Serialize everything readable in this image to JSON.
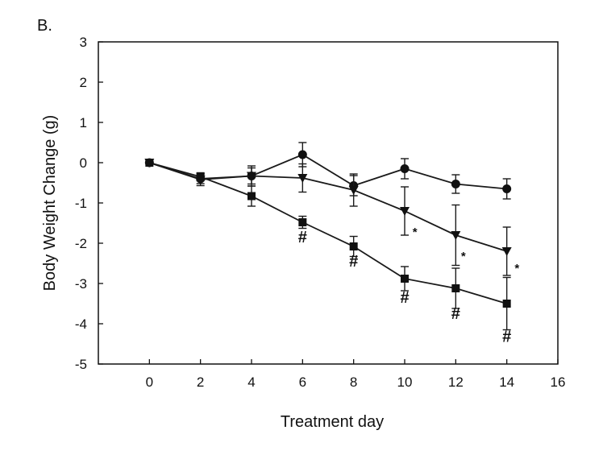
{
  "chart_data": {
    "type": "line",
    "panel_label": "B.",
    "title": "",
    "xlabel": "Treatment day",
    "ylabel": "Body Weight Change (g)",
    "xlim": [
      -2,
      16
    ],
    "ylim": [
      -5,
      3
    ],
    "xticks": [
      0,
      2,
      4,
      6,
      8,
      10,
      12,
      14,
      16
    ],
    "yticks": [
      -5,
      -4,
      -3,
      -2,
      -1,
      0,
      1,
      2,
      3
    ],
    "series": [
      {
        "name": "circle",
        "marker": "circle",
        "x": [
          0,
          2,
          4,
          6,
          8,
          10,
          12,
          14
        ],
        "y": [
          0,
          -0.4,
          -0.33,
          0.2,
          -0.57,
          -0.15,
          -0.53,
          -0.65
        ],
        "err": [
          0.05,
          0.12,
          0.2,
          0.3,
          0.25,
          0.25,
          0.23,
          0.25
        ]
      },
      {
        "name": "triangle",
        "marker": "triangle-down",
        "x": [
          0,
          2,
          4,
          6,
          8,
          10,
          12,
          14
        ],
        "y": [
          0,
          -0.42,
          -0.33,
          -0.38,
          -0.68,
          -1.2,
          -1.8,
          -2.2
        ],
        "err": [
          0.05,
          0.15,
          0.25,
          0.35,
          0.4,
          0.6,
          0.75,
          0.6
        ]
      },
      {
        "name": "square",
        "marker": "square",
        "x": [
          0,
          2,
          4,
          6,
          8,
          10,
          12,
          14
        ],
        "y": [
          0,
          -0.35,
          -0.83,
          -1.48,
          -2.08,
          -2.88,
          -3.12,
          -3.5
        ],
        "err": [
          0.05,
          0.1,
          0.25,
          0.15,
          0.25,
          0.3,
          0.5,
          0.65
        ]
      }
    ],
    "annotations": [
      {
        "text": "#",
        "x": 6,
        "y": -1.98,
        "style": "hash"
      },
      {
        "text": "#",
        "x": 8,
        "y": -2.58,
        "style": "hash"
      },
      {
        "text": "#",
        "x": 10,
        "y": -3.48,
        "style": "hash"
      },
      {
        "text": "#",
        "x": 12,
        "y": -3.88,
        "style": "hash"
      },
      {
        "text": "#",
        "x": 14,
        "y": -4.45,
        "style": "hash"
      },
      {
        "text": "*",
        "x": 10.4,
        "y": -1.82,
        "style": "star"
      },
      {
        "text": "*",
        "x": 12.3,
        "y": -2.42,
        "style": "star"
      },
      {
        "text": "*",
        "x": 14.4,
        "y": -2.72,
        "style": "star"
      }
    ],
    "colors": {
      "axis": "#111111",
      "line": "#1a1a1a",
      "marker": "#111111"
    }
  }
}
